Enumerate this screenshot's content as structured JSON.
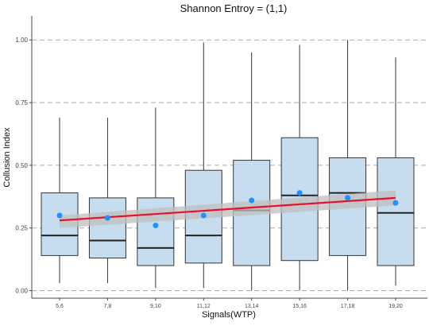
{
  "chart_data": {
    "type": "box",
    "title": "Shannon Entroy = (1,1)",
    "xlabel": "Signals(WTP)",
    "ylabel": "Collusion Index",
    "ylim": [
      -0.03,
      1.08
    ],
    "yticks": [
      0,
      0.25,
      0.5,
      0.75,
      1.0
    ],
    "ytick_labels": [
      "0.00",
      "0.25",
      "0.50",
      "0.75",
      "1.00"
    ],
    "grid": "horizontal-dashed",
    "categories": [
      "5,6",
      "7,8",
      "9,10",
      "11,12",
      "13,14",
      "15,16",
      "17,18",
      "19,20"
    ],
    "boxes": [
      {
        "min": 0.03,
        "q1": 0.14,
        "median": 0.22,
        "q3": 0.39,
        "max": 0.69
      },
      {
        "min": 0.03,
        "q1": 0.13,
        "median": 0.2,
        "q3": 0.37,
        "max": 0.69
      },
      {
        "min": 0.01,
        "q1": 0.1,
        "median": 0.17,
        "q3": 0.37,
        "max": 0.73
      },
      {
        "min": 0.01,
        "q1": 0.11,
        "median": 0.22,
        "q3": 0.48,
        "max": 0.99
      },
      {
        "min": 0.0,
        "q1": 0.1,
        "median": 0.32,
        "q3": 0.52,
        "max": 0.95
      },
      {
        "min": 0.0,
        "q1": 0.12,
        "median": 0.38,
        "q3": 0.61,
        "max": 0.98
      },
      {
        "min": 0.0,
        "q1": 0.14,
        "median": 0.39,
        "q3": 0.53,
        "max": 1.0
      },
      {
        "min": 0.02,
        "q1": 0.1,
        "median": 0.31,
        "q3": 0.53,
        "max": 0.93
      }
    ],
    "means": [
      0.3,
      0.29,
      0.26,
      0.3,
      0.36,
      0.39,
      0.37,
      0.35
    ],
    "trend": {
      "start": 0.28,
      "end": 0.37,
      "band_start": [
        0.25,
        0.3
      ],
      "band_end": [
        0.34,
        0.4
      ]
    },
    "colors": {
      "box_fill": "#c6ddf0",
      "box_stroke": "#333333",
      "mean_point": "#1e90ff",
      "trend_line": "#e8102e",
      "confidence_band": "#bdbdbd",
      "grid": "#aaaaaa"
    }
  }
}
